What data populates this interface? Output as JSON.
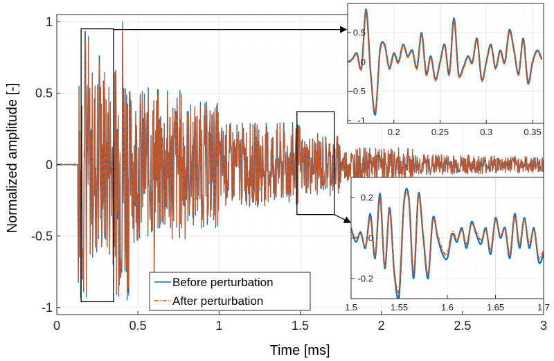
{
  "colors": {
    "before": "#0072BD",
    "after": "#D95319",
    "grid": "#e6e6e6",
    "minorGrid": "#f1f1f1",
    "axis": "#262626",
    "box": "#000000"
  },
  "chart_data": [
    {
      "id": "main",
      "type": "line",
      "xlabel": "Time [ms]",
      "ylabel": "Normalized amplitude [-]",
      "xlim": [
        0,
        3
      ],
      "ylim": [
        -1.05,
        1.05
      ],
      "xticks": [
        0,
        0.5,
        1,
        1.5,
        2,
        2.5,
        3
      ],
      "xtick_labels": [
        "0",
        "0.5",
        "1",
        "1.5",
        "2",
        "2.5",
        "3"
      ],
      "yticks": [
        -1,
        -0.5,
        0,
        0.5,
        1
      ],
      "ytick_labels": [
        "-1",
        "-0.5",
        "0",
        "0.5",
        "1"
      ],
      "grid": true,
      "legend": {
        "position": "bottom-left",
        "entries": [
          "Before perturbation",
          "After perturbation"
        ]
      },
      "series": [
        {
          "name": "Before perturbation",
          "style": "solid"
        },
        {
          "name": "After perturbation",
          "style": "dash-dot"
        }
      ],
      "zoom_boxes": [
        {
          "x": [
            0.15,
            0.35
          ],
          "y": [
            -0.96,
            0.95
          ]
        },
        {
          "x": [
            1.48,
            1.71
          ],
          "y": [
            -0.35,
            0.37
          ]
        }
      ]
    },
    {
      "id": "inset1",
      "type": "line",
      "xlim": [
        0.15,
        0.362
      ],
      "ylim": [
        -1.05,
        1.0
      ],
      "xticks": [
        0.2,
        0.25,
        0.3,
        0.35
      ],
      "xtick_labels": [
        "0.2",
        "0.25",
        "0.3",
        "0.35"
      ],
      "yticks": [
        -1,
        -0.5,
        0,
        0.5
      ],
      "ytick_labels": [
        "-1",
        "-0.5",
        "0",
        "0.5"
      ],
      "grid": true,
      "series": [
        {
          "name": "Before perturbation",
          "x": [
            0.15,
            0.155,
            0.16,
            0.165,
            0.17,
            0.175,
            0.18,
            0.185,
            0.19,
            0.195,
            0.2,
            0.205,
            0.21,
            0.215,
            0.22,
            0.225,
            0.23,
            0.235,
            0.24,
            0.245,
            0.25,
            0.255,
            0.26,
            0.265,
            0.27,
            0.275,
            0.28,
            0.285,
            0.29,
            0.295,
            0.3,
            0.305,
            0.31,
            0.315,
            0.32,
            0.325,
            0.33,
            0.335,
            0.34,
            0.345,
            0.35,
            0.355,
            0.36
          ],
          "y": [
            0.0,
            0.05,
            0.15,
            -0.1,
            0.9,
            -0.2,
            -0.9,
            0.2,
            0.3,
            -0.1,
            0.15,
            0.0,
            0.3,
            0.1,
            0.2,
            -0.1,
            0.5,
            -0.2,
            0.1,
            -0.3,
            0.0,
            0.3,
            -0.2,
            0.75,
            -0.2,
            -0.1,
            0.1,
            0.0,
            0.4,
            -0.3,
            0.0,
            0.3,
            -0.1,
            0.2,
            0.0,
            0.55,
            0.2,
            -0.2,
            0.4,
            -0.35,
            0.0,
            0.2,
            0.05
          ]
        },
        {
          "name": "After perturbation",
          "x": [
            0.15,
            0.155,
            0.16,
            0.165,
            0.17,
            0.175,
            0.18,
            0.185,
            0.19,
            0.195,
            0.2,
            0.205,
            0.21,
            0.215,
            0.22,
            0.225,
            0.23,
            0.235,
            0.24,
            0.245,
            0.25,
            0.255,
            0.26,
            0.265,
            0.27,
            0.275,
            0.28,
            0.285,
            0.29,
            0.295,
            0.3,
            0.305,
            0.31,
            0.315,
            0.32,
            0.325,
            0.33,
            0.335,
            0.34,
            0.345,
            0.35,
            0.355,
            0.36
          ],
          "y": [
            0.0,
            0.04,
            0.13,
            -0.12,
            0.86,
            -0.22,
            -0.86,
            0.18,
            0.28,
            -0.12,
            0.13,
            -0.02,
            0.28,
            0.08,
            0.18,
            -0.12,
            0.47,
            -0.22,
            0.08,
            -0.32,
            -0.02,
            0.28,
            -0.22,
            0.72,
            -0.22,
            -0.12,
            0.08,
            -0.02,
            0.38,
            -0.32,
            -0.02,
            0.28,
            -0.12,
            0.18,
            -0.02,
            0.52,
            0.18,
            -0.22,
            0.38,
            -0.37,
            -0.02,
            0.18,
            0.03
          ]
        }
      ]
    },
    {
      "id": "inset2",
      "type": "line",
      "xlim": [
        1.5,
        1.7
      ],
      "ylim": [
        -0.3,
        0.3
      ],
      "xticks": [
        1.5,
        1.55,
        1.6,
        1.65,
        1.7
      ],
      "xtick_labels": [
        "1.5",
        "1.55",
        "1.6",
        "1.65",
        "1.7"
      ],
      "yticks": [
        -0.2,
        0,
        0.2
      ],
      "ytick_labels": [
        "-0.2",
        "0",
        "0.2"
      ],
      "grid": true,
      "series": [
        {
          "name": "Before perturbation",
          "x": [
            1.5,
            1.505,
            1.51,
            1.515,
            1.52,
            1.525,
            1.53,
            1.535,
            1.54,
            1.545,
            1.55,
            1.555,
            1.56,
            1.565,
            1.57,
            1.575,
            1.58,
            1.585,
            1.59,
            1.595,
            1.6,
            1.605,
            1.61,
            1.615,
            1.62,
            1.625,
            1.63,
            1.635,
            1.64,
            1.645,
            1.65,
            1.655,
            1.66,
            1.665,
            1.67,
            1.675,
            1.68,
            1.685,
            1.69,
            1.695,
            1.7
          ],
          "y": [
            0.05,
            -0.02,
            0.03,
            -0.05,
            0.12,
            -0.1,
            0.22,
            -0.15,
            0.15,
            -0.18,
            -0.28,
            0.18,
            0.2,
            -0.2,
            0.22,
            0.0,
            -0.2,
            0.1,
            0.0,
            -0.08,
            -0.1,
            0.02,
            -0.02,
            0.05,
            -0.05,
            0.08,
            0.02,
            -0.03,
            0.05,
            -0.08,
            0.1,
            0.0,
            0.05,
            -0.1,
            0.12,
            -0.05,
            0.1,
            -0.05,
            0.05,
            -0.12,
            -0.08
          ]
        },
        {
          "name": "After perturbation",
          "x": [
            1.5,
            1.505,
            1.51,
            1.515,
            1.52,
            1.525,
            1.53,
            1.535,
            1.54,
            1.545,
            1.55,
            1.555,
            1.56,
            1.565,
            1.57,
            1.575,
            1.58,
            1.585,
            1.59,
            1.595,
            1.6,
            1.605,
            1.61,
            1.615,
            1.62,
            1.625,
            1.63,
            1.635,
            1.64,
            1.645,
            1.65,
            1.655,
            1.66,
            1.665,
            1.67,
            1.675,
            1.68,
            1.685,
            1.69,
            1.695,
            1.7
          ],
          "y": [
            0.04,
            0.0,
            0.02,
            -0.04,
            0.1,
            -0.09,
            0.2,
            -0.14,
            0.14,
            -0.17,
            -0.25,
            0.17,
            0.19,
            -0.18,
            0.21,
            0.01,
            -0.18,
            0.09,
            0.01,
            -0.06,
            -0.08,
            0.03,
            -0.01,
            0.04,
            -0.03,
            0.07,
            0.03,
            -0.01,
            0.04,
            -0.06,
            0.09,
            0.01,
            0.04,
            -0.08,
            0.11,
            -0.03,
            0.09,
            -0.03,
            0.04,
            -0.1,
            -0.06
          ]
        }
      ]
    }
  ]
}
